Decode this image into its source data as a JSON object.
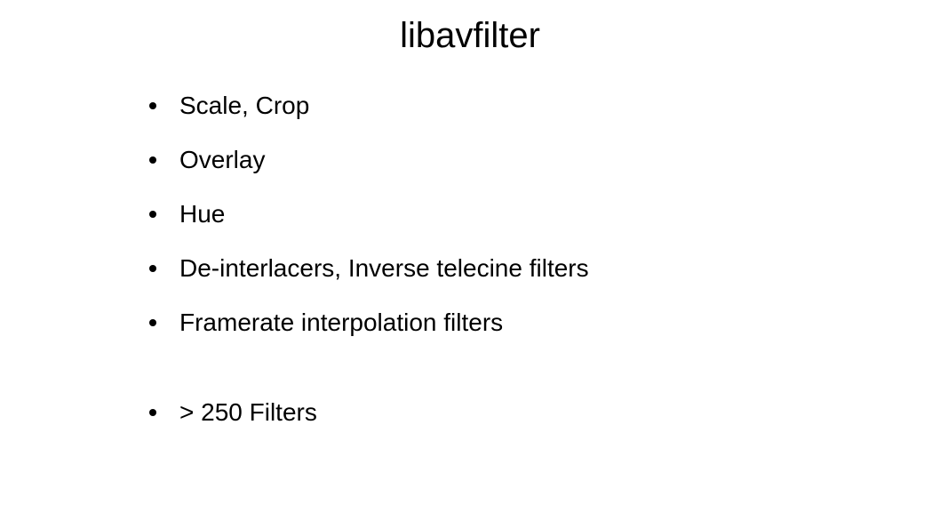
{
  "slide": {
    "title": "libavfilter",
    "title_fontsize": 40,
    "body_fontsize": 28,
    "background_color": "#ffffff",
    "text_color": "#000000",
    "bullet_color": "#000000",
    "font_family": "Arial, Helvetica, sans-serif",
    "bullets_group1": [
      "Scale, Crop",
      "Overlay",
      "Hue",
      "De-interlacers, Inverse telecine filters",
      "Framerate interpolation filters"
    ],
    "bullets_group2": [
      "> 250 Filters"
    ]
  }
}
